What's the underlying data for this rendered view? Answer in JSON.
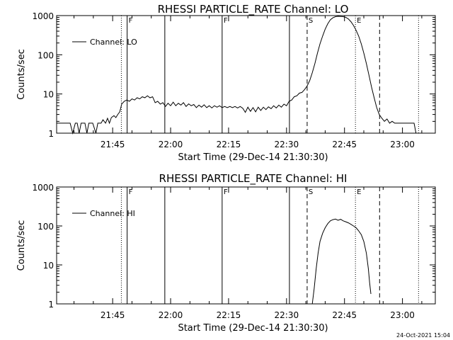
{
  "footer": {
    "timestamp": "24-Oct-2021 15:04"
  },
  "chart_data": [
    {
      "type": "line",
      "title": "RHESSI PARTICLE_RATE Channel: LO",
      "xlabel": "Start Time (29-Dec-14 21:30:30)",
      "ylabel": "Counts/sec",
      "y_scale": "log",
      "ylim": [
        1,
        1000
      ],
      "xlim": [
        "21:30:30",
        "23:08:30"
      ],
      "x_ticks": [
        "21:45",
        "22:00",
        "22:15",
        "22:30",
        "22:45",
        "23:00"
      ],
      "y_ticks": [
        "1",
        "10",
        "100",
        "1000"
      ],
      "legend": {
        "label": "Channel: LO",
        "position": "top-left"
      },
      "markers": [
        {
          "time": "21:47:15",
          "style": "dotted",
          "label": ""
        },
        {
          "time": "21:48:45",
          "style": "solid",
          "label": "F"
        },
        {
          "time": "21:58:30",
          "style": "solid",
          "label": ""
        },
        {
          "time": "22:13:20",
          "style": "solid",
          "label": "F"
        },
        {
          "time": "22:30:45",
          "style": "solid",
          "label": ""
        },
        {
          "time": "22:35:20",
          "style": "dashed",
          "label": "S"
        },
        {
          "time": "22:47:50",
          "style": "dotted",
          "label": "E"
        },
        {
          "time": "22:54:05",
          "style": "dashed",
          "label": ""
        },
        {
          "time": "23:04:10",
          "style": "dotted",
          "label": ""
        }
      ],
      "series": [
        {
          "name": "Channel: LO",
          "points": [
            [
              "21:30:30",
              1.8
            ],
            [
              "21:34:00",
              1.8
            ],
            [
              "21:34:40",
              1.0
            ],
            [
              "21:35:20",
              1.8
            ],
            [
              "21:35:50",
              1.8
            ],
            [
              "21:36:20",
              1.0
            ],
            [
              "21:36:50",
              1.8
            ],
            [
              "21:37:50",
              1.8
            ],
            [
              "21:38:20",
              1.0
            ],
            [
              "21:38:50",
              1.8
            ],
            [
              "21:39:50",
              1.8
            ],
            [
              "21:40:40",
              1.0
            ],
            [
              "21:41:10",
              1.8
            ],
            [
              "21:42:00",
              1.8
            ],
            [
              "21:42:30",
              2.2
            ],
            [
              "21:43:10",
              1.8
            ],
            [
              "21:43:40",
              2.4
            ],
            [
              "21:44:10",
              1.8
            ],
            [
              "21:44:40",
              2.5
            ],
            [
              "21:45:20",
              2.8
            ],
            [
              "21:45:50",
              2.5
            ],
            [
              "21:46:20",
              3.0
            ],
            [
              "21:46:50",
              3.5
            ],
            [
              "21:47:20",
              5.5
            ],
            [
              "21:48:00",
              6.5
            ],
            [
              "21:48:40",
              7.0
            ],
            [
              "21:49:20",
              6.5
            ],
            [
              "21:50:00",
              7.5
            ],
            [
              "21:50:40",
              7.0
            ],
            [
              "21:51:20",
              8.0
            ],
            [
              "21:52:00",
              7.5
            ],
            [
              "21:52:40",
              8.5
            ],
            [
              "21:53:20",
              8.0
            ],
            [
              "21:54:00",
              9.0
            ],
            [
              "21:54:40",
              8.0
            ],
            [
              "21:55:20",
              8.5
            ],
            [
              "21:56:00",
              6.0
            ],
            [
              "21:56:40",
              6.5
            ],
            [
              "21:57:20",
              5.5
            ],
            [
              "21:58:00",
              6.0
            ],
            [
              "21:58:40",
              4.8
            ],
            [
              "21:59:20",
              5.8
            ],
            [
              "22:00:00",
              5.0
            ],
            [
              "22:00:40",
              6.2
            ],
            [
              "22:01:20",
              5.0
            ],
            [
              "22:02:00",
              5.8
            ],
            [
              "22:02:40",
              5.2
            ],
            [
              "22:03:20",
              6.0
            ],
            [
              "22:04:00",
              4.8
            ],
            [
              "22:04:40",
              5.6
            ],
            [
              "22:05:20",
              5.0
            ],
            [
              "22:06:00",
              5.4
            ],
            [
              "22:06:40",
              4.5
            ],
            [
              "22:07:20",
              5.2
            ],
            [
              "22:08:00",
              4.6
            ],
            [
              "22:08:40",
              5.3
            ],
            [
              "22:09:20",
              4.5
            ],
            [
              "22:10:00",
              5.0
            ],
            [
              "22:10:40",
              4.4
            ],
            [
              "22:11:20",
              5.0
            ],
            [
              "22:12:00",
              4.6
            ],
            [
              "22:12:40",
              5.0
            ],
            [
              "22:13:20",
              4.5
            ],
            [
              "22:14:00",
              4.8
            ],
            [
              "22:14:40",
              4.5
            ],
            [
              "22:15:20",
              4.8
            ],
            [
              "22:16:00",
              4.5
            ],
            [
              "22:16:40",
              4.8
            ],
            [
              "22:17:20",
              4.4
            ],
            [
              "22:18:00",
              4.8
            ],
            [
              "22:18:40",
              4.3
            ],
            [
              "22:19:20",
              3.4
            ],
            [
              "22:20:00",
              4.6
            ],
            [
              "22:20:40",
              3.6
            ],
            [
              "22:21:20",
              4.5
            ],
            [
              "22:22:00",
              3.5
            ],
            [
              "22:22:40",
              4.6
            ],
            [
              "22:23:20",
              3.8
            ],
            [
              "22:24:00",
              4.6
            ],
            [
              "22:24:40",
              4.0
            ],
            [
              "22:25:20",
              4.7
            ],
            [
              "22:26:00",
              4.2
            ],
            [
              "22:26:40",
              5.0
            ],
            [
              "22:27:20",
              4.4
            ],
            [
              "22:28:00",
              5.2
            ],
            [
              "22:28:40",
              4.6
            ],
            [
              "22:29:20",
              5.5
            ],
            [
              "22:30:00",
              5.0
            ],
            [
              "22:30:40",
              6.5
            ],
            [
              "22:31:20",
              7.0
            ],
            [
              "22:32:00",
              8.5
            ],
            [
              "22:32:40",
              9.0
            ],
            [
              "22:33:20",
              10.5
            ],
            [
              "22:34:00",
              11.0
            ],
            [
              "22:34:40",
              13.0
            ],
            [
              "22:35:20",
              16.0
            ],
            [
              "22:36:00",
              22.0
            ],
            [
              "22:36:40",
              35.0
            ],
            [
              "22:37:20",
              60.0
            ],
            [
              "22:38:00",
              110.0
            ],
            [
              "22:38:40",
              190.0
            ],
            [
              "22:39:20",
              300.0
            ],
            [
              "22:40:00",
              450.0
            ],
            [
              "22:40:40",
              620.0
            ],
            [
              "22:41:20",
              780.0
            ],
            [
              "22:42:00",
              880.0
            ],
            [
              "22:42:40",
              940.0
            ],
            [
              "22:43:20",
              960.0
            ],
            [
              "22:44:00",
              950.0
            ],
            [
              "22:44:40",
              940.0
            ],
            [
              "22:45:20",
              900.0
            ],
            [
              "22:46:00",
              820.0
            ],
            [
              "22:46:40",
              700.0
            ],
            [
              "22:47:20",
              560.0
            ],
            [
              "22:48:00",
              420.0
            ],
            [
              "22:48:40",
              300.0
            ],
            [
              "22:49:20",
              190.0
            ],
            [
              "22:50:00",
              110.0
            ],
            [
              "22:50:40",
              60.0
            ],
            [
              "22:51:20",
              30.0
            ],
            [
              "22:52:00",
              15.0
            ],
            [
              "22:52:40",
              8.0
            ],
            [
              "22:53:20",
              4.5
            ],
            [
              "22:54:00",
              3.0
            ],
            [
              "22:54:40",
              2.4
            ],
            [
              "22:55:20",
              2.0
            ],
            [
              "22:56:00",
              2.3
            ],
            [
              "22:56:40",
              1.8
            ],
            [
              "22:57:20",
              2.0
            ],
            [
              "22:58:00",
              1.8
            ],
            [
              "23:03:00",
              1.8
            ],
            [
              "23:03:30",
              1.0
            ]
          ]
        }
      ]
    },
    {
      "type": "line",
      "title": "RHESSI PARTICLE_RATE Channel: HI",
      "xlabel": "Start Time (29-Dec-14 21:30:30)",
      "ylabel": "Counts/sec",
      "y_scale": "log",
      "ylim": [
        1,
        1000
      ],
      "xlim": [
        "21:30:30",
        "23:08:30"
      ],
      "x_ticks": [
        "21:45",
        "22:00",
        "22:15",
        "22:30",
        "22:45",
        "23:00"
      ],
      "y_ticks": [
        "1",
        "10",
        "100",
        "1000"
      ],
      "legend": {
        "label": "Channel: HI",
        "position": "top-left"
      },
      "markers": [
        {
          "time": "21:47:15",
          "style": "dotted",
          "label": ""
        },
        {
          "time": "21:48:45",
          "style": "solid",
          "label": "F"
        },
        {
          "time": "21:58:30",
          "style": "solid",
          "label": ""
        },
        {
          "time": "22:13:20",
          "style": "solid",
          "label": "F"
        },
        {
          "time": "22:30:45",
          "style": "solid",
          "label": ""
        },
        {
          "time": "22:35:20",
          "style": "dashed",
          "label": "S"
        },
        {
          "time": "22:47:50",
          "style": "dotted",
          "label": "E"
        },
        {
          "time": "22:54:05",
          "style": "dashed",
          "label": ""
        },
        {
          "time": "23:04:10",
          "style": "dotted",
          "label": ""
        }
      ],
      "series": [
        {
          "name": "Channel: HI",
          "points": [
            [
              "22:36:40",
              1.0
            ],
            [
              "22:37:10",
              2.5
            ],
            [
              "22:37:40",
              8.0
            ],
            [
              "22:38:10",
              20.0
            ],
            [
              "22:38:40",
              40.0
            ],
            [
              "22:39:20",
              65.0
            ],
            [
              "22:40:00",
              90.0
            ],
            [
              "22:40:40",
              115.0
            ],
            [
              "22:41:20",
              135.0
            ],
            [
              "22:42:00",
              145.0
            ],
            [
              "22:42:40",
              150.0
            ],
            [
              "22:43:20",
              140.0
            ],
            [
              "22:44:00",
              148.0
            ],
            [
              "22:44:40",
              135.0
            ],
            [
              "22:45:20",
              128.0
            ],
            [
              "22:46:00",
              120.0
            ],
            [
              "22:46:40",
              110.0
            ],
            [
              "22:47:20",
              100.0
            ],
            [
              "22:48:00",
              90.0
            ],
            [
              "22:48:40",
              75.0
            ],
            [
              "22:49:20",
              60.0
            ],
            [
              "22:50:00",
              40.0
            ],
            [
              "22:50:40",
              20.0
            ],
            [
              "22:51:10",
              8.0
            ],
            [
              "22:51:30",
              3.5
            ],
            [
              "22:51:50",
              1.8
            ]
          ]
        }
      ]
    }
  ]
}
